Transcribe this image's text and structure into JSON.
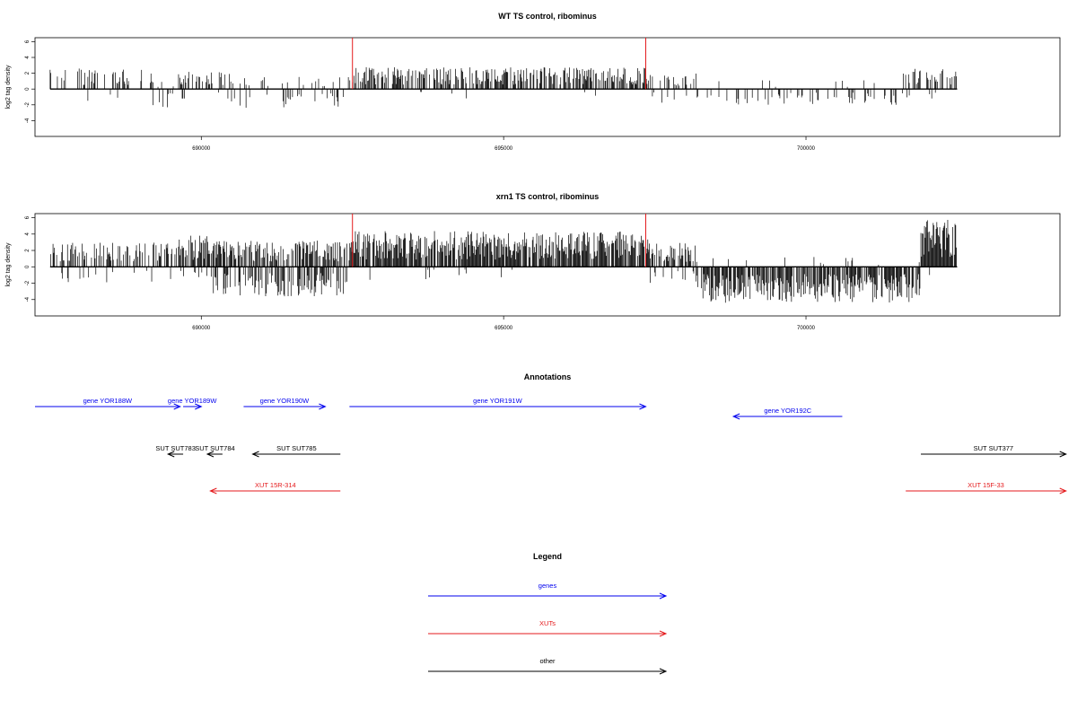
{
  "chart_data": [
    {
      "type": "bar",
      "title": "WT TS control, ribominus",
      "xlabel": "",
      "ylabel": "log2 tag density",
      "xlim": [
        687250,
        704200
      ],
      "ylim": [
        -6,
        6.5
      ],
      "xticks": [
        690000,
        695000,
        700000
      ],
      "yticks": [
        6,
        4,
        2,
        0,
        -2,
        -4
      ],
      "data_range": [
        687500,
        702500
      ],
      "markers": [
        692500,
        697350
      ],
      "series_color": "#000000",
      "marker_color": "#e41a1c",
      "regions": [
        {
          "from": 687500,
          "to": 689200,
          "pos_mean": 1.3,
          "pos_max": 4.0,
          "pos_prob": 0.3,
          "neg_prob": 0.03,
          "neg_mean": 0.8,
          "neg_max": 1.5
        },
        {
          "from": 689200,
          "to": 689600,
          "pos_mean": 0.6,
          "pos_max": 1.2,
          "pos_prob": 0.12,
          "neg_prob": 0.3,
          "neg_mean": 1.2,
          "neg_max": 3.1
        },
        {
          "from": 689600,
          "to": 690500,
          "pos_mean": 1.2,
          "pos_max": 3.6,
          "pos_prob": 0.4,
          "neg_prob": 0.05,
          "neg_mean": 0.8,
          "neg_max": 1.2
        },
        {
          "from": 690500,
          "to": 692500,
          "pos_mean": 0.8,
          "pos_max": 1.7,
          "pos_prob": 0.1,
          "neg_prob": 0.1,
          "neg_mean": 1.2,
          "neg_max": 2.8
        },
        {
          "from": 692500,
          "to": 697400,
          "pos_mean": 1.4,
          "pos_max": 3.9,
          "pos_prob": 0.6,
          "neg_prob": 0.02,
          "neg_mean": 0.6,
          "neg_max": 1.2
        },
        {
          "from": 697400,
          "to": 698200,
          "pos_mean": 1.0,
          "pos_max": 3.0,
          "pos_prob": 0.25,
          "neg_prob": 0.12,
          "neg_mean": 1.0,
          "neg_max": 1.8
        },
        {
          "from": 698200,
          "to": 701600,
          "pos_mean": 0.6,
          "pos_max": 1.1,
          "pos_prob": 0.03,
          "neg_prob": 0.2,
          "neg_mean": 1.0,
          "neg_max": 3.2
        },
        {
          "from": 701600,
          "to": 702500,
          "pos_mean": 1.3,
          "pos_max": 3.6,
          "pos_prob": 0.4,
          "neg_prob": 0.05,
          "neg_mean": 0.8,
          "neg_max": 1.2
        }
      ]
    },
    {
      "type": "bar",
      "title": "xrn1 TS control, ribominus",
      "xlabel": "",
      "ylabel": "log2 tag density",
      "xlim": [
        687250,
        704200
      ],
      "ylim": [
        -6,
        6.5
      ],
      "xticks": [
        690000,
        695000,
        700000
      ],
      "yticks": [
        6,
        4,
        2,
        0,
        -2,
        -4
      ],
      "data_range": [
        687500,
        702500
      ],
      "markers": [
        692500,
        697350
      ],
      "series_color": "#000000",
      "marker_color": "#e41a1c",
      "regions": [
        {
          "from": 687500,
          "to": 689600,
          "pos_mean": 1.5,
          "pos_max": 3.6,
          "pos_prob": 0.45,
          "neg_prob": 0.08,
          "neg_mean": 1.0,
          "neg_max": 2.5
        },
        {
          "from": 689600,
          "to": 690200,
          "pos_mean": 2.0,
          "pos_max": 3.8,
          "pos_prob": 0.85,
          "neg_prob": 0.15,
          "neg_mean": 1.2,
          "neg_max": 2.5
        },
        {
          "from": 690200,
          "to": 692500,
          "pos_mean": 1.6,
          "pos_max": 4.0,
          "pos_prob": 0.6,
          "neg_prob": 0.45,
          "neg_mean": 1.8,
          "neg_max": 5.0
        },
        {
          "from": 692500,
          "to": 697400,
          "pos_mean": 2.2,
          "pos_max": 5.0,
          "pos_prob": 0.85,
          "neg_prob": 0.03,
          "neg_mean": 0.8,
          "neg_max": 2.8
        },
        {
          "from": 697400,
          "to": 698200,
          "pos_mean": 1.5,
          "pos_max": 3.5,
          "pos_prob": 0.6,
          "neg_prob": 0.15,
          "neg_mean": 1.0,
          "neg_max": 2.5
        },
        {
          "from": 698200,
          "to": 701900,
          "pos_mean": 0.6,
          "pos_max": 1.2,
          "pos_prob": 0.08,
          "neg_prob": 0.75,
          "neg_mean": 2.2,
          "neg_max": 5.5
        },
        {
          "from": 701900,
          "to": 702500,
          "pos_mean": 3.0,
          "pos_max": 6.0,
          "pos_prob": 0.95,
          "neg_prob": 0.03,
          "neg_mean": 0.6,
          "neg_max": 1.0
        }
      ]
    }
  ],
  "annotations": {
    "title": "Annotations",
    "features": [
      {
        "label": "gene YOR188W",
        "kind": "gene",
        "strand": "+",
        "from": 687250,
        "to": 689650,
        "row": 0
      },
      {
        "label": "gene YOR189W",
        "kind": "gene",
        "strand": "+",
        "from": 689700,
        "to": 690000,
        "row": 0
      },
      {
        "label": "gene YOR190W",
        "kind": "gene",
        "strand": "+",
        "from": 690700,
        "to": 692050,
        "row": 0
      },
      {
        "label": "gene YOR191W",
        "kind": "gene",
        "strand": "+",
        "from": 692450,
        "to": 697350,
        "row": 0
      },
      {
        "label": "gene YOR192C",
        "kind": "gene",
        "strand": "-",
        "from": 698800,
        "to": 700600,
        "row": 1
      },
      {
        "label": "SUT SUT783",
        "kind": "other",
        "strand": "-",
        "from": 689450,
        "to": 689700,
        "row": 2
      },
      {
        "label": "SUT SUT784",
        "kind": "other",
        "strand": "-",
        "from": 690100,
        "to": 690350,
        "row": 2
      },
      {
        "label": "SUT SUT785",
        "kind": "other",
        "strand": "-",
        "from": 690850,
        "to": 692300,
        "row": 2
      },
      {
        "label": "SUT SUT377",
        "kind": "other",
        "strand": "+",
        "from": 701900,
        "to": 704300,
        "row": 2
      },
      {
        "label": "XUT 15R-314",
        "kind": "xut",
        "strand": "-",
        "from": 690150,
        "to": 692300,
        "row": 3
      },
      {
        "label": "XUT 15F-33",
        "kind": "xut",
        "strand": "+",
        "from": 701650,
        "to": 704300,
        "row": 3
      }
    ]
  },
  "legend": {
    "title": "Legend",
    "items": [
      {
        "label": "genes",
        "kind": "gene"
      },
      {
        "label": "XUTs",
        "kind": "xut"
      },
      {
        "label": "other",
        "kind": "other"
      }
    ]
  },
  "colors": {
    "gene": "#0000ee",
    "xut": "#e41a1c",
    "other": "#000000"
  }
}
